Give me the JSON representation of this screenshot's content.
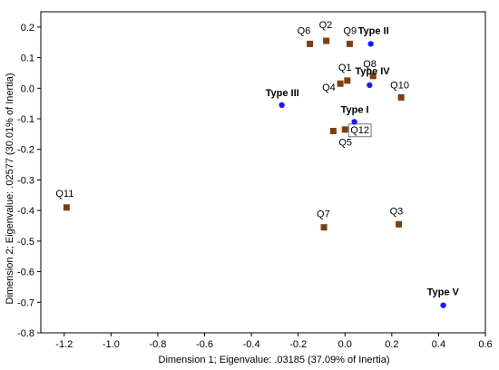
{
  "chart_data": {
    "type": "scatter",
    "title": "",
    "xlabel": "Dimension 1; Eigenvalue: .03185 (37.09% of Inertia)",
    "ylabel": "Dimension 2; Eigenvalue: .02577 (30.01% of Inertia)",
    "xlim": [
      -1.3,
      0.6
    ],
    "ylim": [
      -0.8,
      0.25
    ],
    "x_ticks": [
      -1.2,
      -1.0,
      -0.8,
      -0.6,
      -0.4,
      -0.2,
      0.0,
      0.2,
      0.4,
      0.6
    ],
    "x_tick_labels": [
      "-1.2",
      "-1.0",
      "-0.8",
      "-0.6",
      "-0.4",
      "-0.2",
      "0.0",
      "0.2",
      "0.4",
      "0.6"
    ],
    "y_ticks": [
      0.2,
      0.1,
      0.0,
      -0.1,
      -0.2,
      -0.3,
      -0.4,
      -0.5,
      -0.6,
      -0.7,
      -0.8
    ],
    "y_tick_labels": [
      "0.2",
      "0.1",
      "0.0",
      "-0.1",
      "-0.2",
      "-0.3",
      "-0.4",
      "-0.5",
      "-0.6",
      "-0.7",
      "-0.8"
    ],
    "grid": false,
    "series": [
      {
        "marker": "square",
        "color": "#7b3f12",
        "points": [
          {
            "label": "Q2",
            "x": -0.08,
            "y": 0.155
          },
          {
            "label": "Q6",
            "x": -0.15,
            "y": 0.145
          },
          {
            "label": "Q9",
            "x": 0.02,
            "y": 0.145
          },
          {
            "label": "Q8",
            "x": 0.12,
            "y": 0.04
          },
          {
            "label": "Q1",
            "x": 0.01,
            "y": 0.025
          },
          {
            "label": "Q4",
            "x": -0.02,
            "y": 0.015
          },
          {
            "label": "Q10",
            "x": 0.24,
            "y": -0.03
          },
          {
            "label": "Q12",
            "x": 0.0,
            "y": -0.135
          },
          {
            "label": "Q5",
            "x": -0.05,
            "y": -0.14
          },
          {
            "label": "Q11",
            "x": -1.19,
            "y": -0.39
          },
          {
            "label": "Q7",
            "x": -0.09,
            "y": -0.455
          },
          {
            "label": "Q3",
            "x": 0.23,
            "y": -0.445
          }
        ]
      },
      {
        "marker": "circle",
        "color": "#1a1aff",
        "points": [
          {
            "label": "Type II",
            "x": 0.11,
            "y": 0.145
          },
          {
            "label": "Type IV",
            "x": 0.105,
            "y": 0.01
          },
          {
            "label": "Type III",
            "x": -0.27,
            "y": -0.055
          },
          {
            "label": "Type I",
            "x": 0.04,
            "y": -0.11
          },
          {
            "label": "Type V",
            "x": 0.42,
            "y": -0.71
          }
        ]
      }
    ]
  }
}
